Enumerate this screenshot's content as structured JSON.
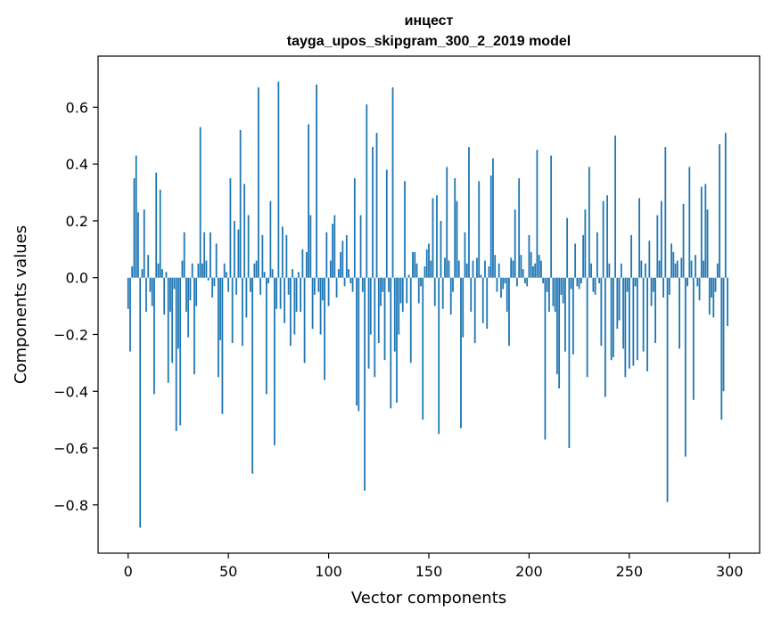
{
  "chart_data": {
    "type": "bar",
    "title_line1": "инцест",
    "title_line2": "tayga_upos_skipgram_300_2_2019 model",
    "xlabel": "Vector components",
    "ylabel": "Components values",
    "xlim": [
      -15,
      315
    ],
    "ylim": [
      -0.97,
      0.78
    ],
    "xticks": [
      0,
      50,
      100,
      150,
      200,
      250,
      300
    ],
    "xtick_labels": [
      "0",
      "50",
      "100",
      "150",
      "200",
      "250",
      "300"
    ],
    "yticks": [
      -0.8,
      -0.6,
      -0.4,
      -0.2,
      0.0,
      0.2,
      0.4,
      0.6
    ],
    "ytick_labels": [
      "−0.8",
      "−0.6",
      "−0.4",
      "−0.2",
      "0.0",
      "0.2",
      "0.4",
      "0.6"
    ],
    "bar_color": "#1f77b4",
    "values": [
      -0.11,
      -0.26,
      0.04,
      0.35,
      0.43,
      0.23,
      -0.88,
      0.03,
      0.24,
      -0.12,
      0.08,
      -0.05,
      -0.1,
      -0.41,
      0.37,
      0.05,
      0.31,
      0.03,
      -0.13,
      0.02,
      -0.37,
      -0.12,
      -0.3,
      -0.04,
      -0.54,
      -0.25,
      -0.52,
      0.06,
      0.16,
      -0.12,
      -0.21,
      -0.08,
      0.05,
      -0.34,
      -0.1,
      0.05,
      0.53,
      0.05,
      0.16,
      0.06,
      -0.01,
      0.16,
      -0.07,
      -0.03,
      0.12,
      -0.35,
      -0.22,
      -0.48,
      0.05,
      0.02,
      -0.05,
      0.35,
      -0.23,
      0.2,
      -0.06,
      0.17,
      0.52,
      -0.24,
      0.33,
      -0.14,
      0.22,
      -0.05,
      -0.69,
      0.05,
      0.06,
      0.67,
      -0.06,
      0.15,
      0.02,
      -0.41,
      -0.02,
      0.27,
      0.03,
      -0.59,
      -0.11,
      0.69,
      -0.11,
      0.18,
      -0.16,
      0.15,
      -0.06,
      -0.24,
      0.03,
      -0.2,
      -0.12,
      0.02,
      -0.12,
      0.1,
      -0.3,
      0.09,
      0.54,
      0.22,
      -0.18,
      -0.06,
      0.68,
      -0.05,
      -0.2,
      -0.08,
      -0.36,
      0.16,
      -0.1,
      0.06,
      0.19,
      0.22,
      -0.07,
      0.03,
      0.09,
      0.13,
      -0.03,
      0.15,
      0.03,
      -0.02,
      -0.05,
      0.35,
      -0.45,
      -0.47,
      0.22,
      -0.05,
      -0.75,
      0.61,
      -0.32,
      -0.2,
      0.46,
      -0.35,
      0.51,
      -0.23,
      -0.1,
      -0.05,
      -0.29,
      0.38,
      -0.05,
      -0.46,
      0.67,
      -0.26,
      -0.44,
      -0.2,
      -0.09,
      -0.12,
      0.34,
      -0.09,
      0.01,
      -0.3,
      0.09,
      0.09,
      0.05,
      -0.09,
      -0.03,
      -0.5,
      0.04,
      0.1,
      0.12,
      0.06,
      0.28,
      -0.1,
      0.29,
      -0.55,
      0.2,
      -0.11,
      0.07,
      0.39,
      0.06,
      -0.13,
      -0.05,
      0.35,
      0.27,
      0.06,
      -0.53,
      -0.21,
      0.16,
      0.05,
      0.46,
      -0.12,
      0.06,
      -0.23,
      0.07,
      0.34,
      0.01,
      -0.16,
      0.06,
      -0.18,
      0.04,
      0.36,
      0.42,
      0.08,
      -0.05,
      0.05,
      -0.07,
      -0.04,
      -0.02,
      -0.12,
      -0.24,
      0.07,
      0.06,
      0.24,
      -0.03,
      0.35,
      0.08,
      0.03,
      -0.02,
      -0.03,
      0.15,
      0.09,
      0.04,
      0.05,
      0.45,
      0.08,
      0.06,
      -0.02,
      -0.57,
      -0.05,
      -0.12,
      0.43,
      -0.1,
      -0.12,
      -0.34,
      -0.39,
      -0.06,
      -0.09,
      -0.26,
      0.21,
      -0.6,
      -0.04,
      -0.27,
      0.12,
      -0.03,
      -0.04,
      -0.02,
      0.15,
      0.24,
      -0.35,
      0.39,
      0.05,
      -0.05,
      -0.06,
      0.16,
      -0.02,
      -0.24,
      0.27,
      -0.42,
      0.29,
      0.05,
      -0.29,
      -0.28,
      0.5,
      -0.18,
      -0.15,
      0.05,
      -0.25,
      -0.35,
      -0.05,
      -0.32,
      0.15,
      -0.31,
      -0.03,
      -0.29,
      0.28,
      0.06,
      -0.26,
      0.05,
      -0.33,
      0.13,
      -0.1,
      -0.05,
      -0.23,
      0.22,
      0.06,
      0.27,
      -0.07,
      0.46,
      -0.79,
      -0.06,
      0.12,
      0.09,
      0.05,
      0.06,
      -0.25,
      0.07,
      0.26,
      -0.63,
      -0.03,
      0.39,
      0.06,
      -0.43,
      0.08,
      -0.03,
      -0.08,
      0.32,
      0.06,
      0.33,
      0.24,
      -0.13,
      -0.07,
      -0.14,
      -0.05,
      0.05,
      0.47,
      -0.5,
      -0.4,
      0.51,
      -0.17
    ]
  }
}
